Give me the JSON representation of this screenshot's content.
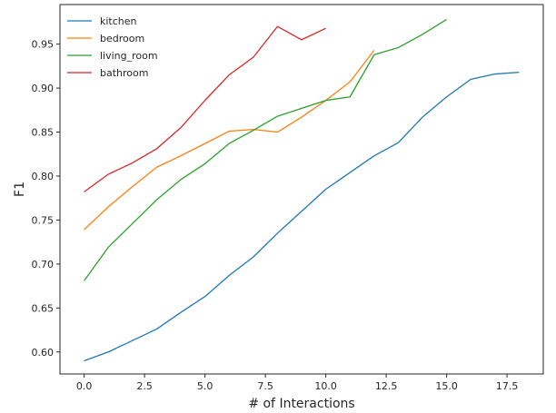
{
  "chart_data": {
    "type": "line",
    "title": "",
    "xlabel": "# of Interactions",
    "ylabel": "F1",
    "xlim": [
      -1.0,
      19.0
    ],
    "ylim": [
      0.575,
      0.995
    ],
    "xticks": [
      0.0,
      2.5,
      5.0,
      7.5,
      10.0,
      12.5,
      15.0,
      17.5
    ],
    "xtick_labels": [
      "0.0",
      "2.5",
      "5.0",
      "7.5",
      "10.0",
      "12.5",
      "15.0",
      "17.5"
    ],
    "yticks": [
      0.6,
      0.65,
      0.7,
      0.75,
      0.8,
      0.85,
      0.9,
      0.95
    ],
    "ytick_labels": [
      "0.60",
      "0.65",
      "0.70",
      "0.75",
      "0.80",
      "0.85",
      "0.90",
      "0.95"
    ],
    "grid": false,
    "legend": "top-left",
    "series": [
      {
        "name": "kitchen",
        "color": "#1f77b4",
        "x": [
          0,
          1,
          2,
          3,
          4,
          5,
          6,
          7,
          8,
          9,
          10,
          11,
          12,
          13,
          14,
          15,
          16,
          17,
          18
        ],
        "y": [
          0.59,
          0.6,
          0.613,
          0.626,
          0.645,
          0.663,
          0.687,
          0.708,
          0.735,
          0.76,
          0.785,
          0.804,
          0.823,
          0.838,
          0.867,
          0.89,
          0.91,
          0.916,
          0.918
        ]
      },
      {
        "name": "bedroom",
        "color": "#ff7f0e",
        "x": [
          0,
          1,
          2,
          3,
          4,
          5,
          6,
          7,
          8,
          9,
          10,
          11,
          12
        ],
        "y": [
          0.739,
          0.765,
          0.788,
          0.81,
          0.823,
          0.837,
          0.851,
          0.853,
          0.85,
          0.867,
          0.886,
          0.907,
          0.943
        ]
      },
      {
        "name": "living_room",
        "color": "#2ca02c",
        "x": [
          0,
          1,
          2,
          3,
          4,
          5,
          6,
          7,
          8,
          9,
          10,
          11,
          12,
          13,
          14,
          15
        ],
        "y": [
          0.681,
          0.719,
          0.746,
          0.773,
          0.796,
          0.814,
          0.837,
          0.852,
          0.868,
          0.877,
          0.886,
          0.89,
          0.938,
          0.946,
          0.961,
          0.978
        ]
      },
      {
        "name": "bathroom",
        "color": "#d62728",
        "x": [
          0,
          1,
          2,
          3,
          4,
          5,
          6,
          7,
          8,
          9,
          10
        ],
        "y": [
          0.782,
          0.802,
          0.815,
          0.831,
          0.855,
          0.886,
          0.915,
          0.935,
          0.97,
          0.955,
          0.968
        ]
      }
    ]
  }
}
